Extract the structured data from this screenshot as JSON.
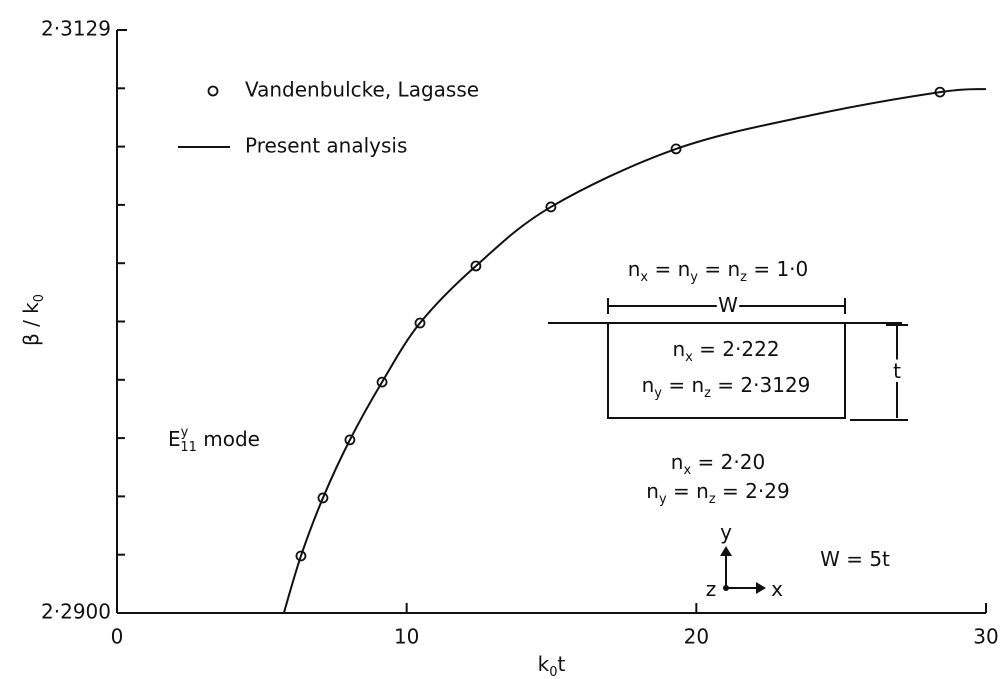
{
  "chart_data": {
    "type": "line",
    "xlabel": [
      "k",
      {
        "sub": "0"
      },
      "t"
    ],
    "ylabel": [
      "β / k",
      {
        "sub": "0"
      }
    ],
    "xlim": [
      0,
      30
    ],
    "ylim": [
      2.29,
      2.3129
    ],
    "xticks": [
      0,
      10,
      20,
      30
    ],
    "yticks": [
      {
        "value": 2.29,
        "label": "2·2900"
      },
      {
        "value": 2.3129,
        "label": "2·3129"
      }
    ],
    "series": [
      {
        "name": "Vandenbulcke, Lagasse",
        "type": "scatter",
        "color": "#111111",
        "x": [
          6.35,
          7.11,
          8.04,
          9.15,
          10.46,
          12.39,
          14.98,
          19.3,
          28.41
        ],
        "values": [
          2.29224,
          2.29452,
          2.2968,
          2.29907,
          2.30139,
          2.30363,
          2.30595,
          2.30823,
          2.31046
        ]
      },
      {
        "name": "Present analysis",
        "type": "line",
        "color": "#111111",
        "x": [
          5.76,
          6.35,
          7.11,
          8.04,
          9.15,
          10.46,
          12.39,
          14.98,
          19.3,
          24,
          28.41,
          30
        ],
        "values": [
          2.29,
          2.29224,
          2.29452,
          2.2968,
          2.29907,
          2.30139,
          2.30363,
          2.30595,
          2.30823,
          2.30956,
          2.31046,
          2.31058
        ]
      }
    ],
    "annotations": {
      "mode": [
        "E",
        {
          "sup": "y"
        },
        {
          "sub": "11"
        },
        " mode"
      ],
      "cover": [
        "n",
        {
          "sub": "x"
        },
        " = n",
        {
          "sub": "y"
        },
        " = n",
        {
          "sub": "z"
        },
        " = 1·0"
      ],
      "width": [
        "W"
      ],
      "core_x": [
        "n",
        {
          "sub": "x"
        },
        " = 2·222"
      ],
      "core_yz": [
        "n",
        {
          "sub": "y"
        },
        " = n",
        {
          "sub": "z"
        },
        " = 2·3129"
      ],
      "thickness": [
        "t"
      ],
      "sub_x": [
        "n",
        {
          "sub": "x"
        },
        " = 2·20"
      ],
      "sub_yz": [
        "n",
        {
          "sub": "y"
        },
        " = n",
        {
          "sub": "z"
        },
        " = 2·29"
      ],
      "axis_y": [
        "y"
      ],
      "axis_z": [
        "z"
      ],
      "axis_x": [
        "x"
      ],
      "ratio": [
        "W = 5t"
      ]
    }
  }
}
